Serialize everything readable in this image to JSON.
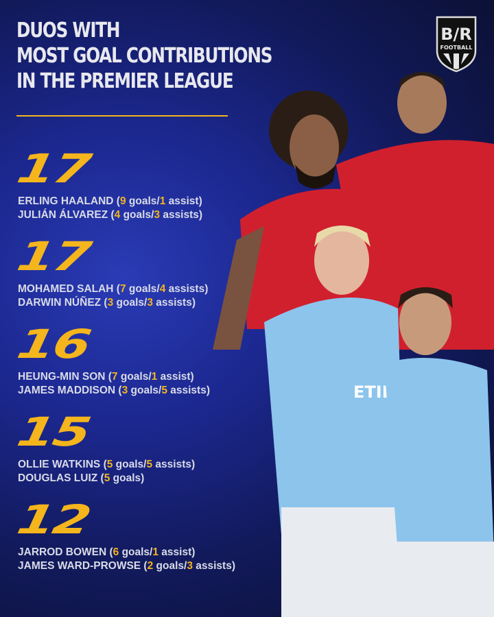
{
  "title": [
    "DUOS WITH",
    "MOST GOAL CONTRIBUTIONS",
    "IN THE PREMIER LEAGUE"
  ],
  "logo": {
    "text": "B/R",
    "subtext": "FOOTBALL"
  },
  "colors": {
    "accent": "#f5b51c",
    "background": "#1c2890",
    "liverpool_red": "#d0202e",
    "city_blue": "#8cc4ec"
  },
  "entries": [
    {
      "total": "17",
      "lines": [
        [
          {
            "t": "ERLING HAALAND ("
          },
          {
            "t": "9",
            "hl": true
          },
          {
            "t": " goals/"
          },
          {
            "t": "1",
            "hl": true
          },
          {
            "t": " assist)"
          }
        ],
        [
          {
            "t": "JULIÁN ÁLVAREZ ("
          },
          {
            "t": "4",
            "hl": true
          },
          {
            "t": " goals/"
          },
          {
            "t": "3",
            "hl": true
          },
          {
            "t": " assists)"
          }
        ]
      ]
    },
    {
      "total": "17",
      "lines": [
        [
          {
            "t": "MOHAMED SALAH ("
          },
          {
            "t": "7",
            "hl": true
          },
          {
            "t": " goals/"
          },
          {
            "t": "4",
            "hl": true
          },
          {
            "t": " assists)"
          }
        ],
        [
          {
            "t": "DARWIN NÚÑEZ ("
          },
          {
            "t": "3",
            "hl": true
          },
          {
            "t": " goals/"
          },
          {
            "t": "3",
            "hl": true
          },
          {
            "t": " assists)"
          }
        ]
      ]
    },
    {
      "total": "16",
      "lines": [
        [
          {
            "t": "HEUNG-MIN SON ("
          },
          {
            "t": "7",
            "hl": true
          },
          {
            "t": " goals/"
          },
          {
            "t": "1",
            "hl": true
          },
          {
            "t": " assist)"
          }
        ],
        [
          {
            "t": "JAMES MADDISON ("
          },
          {
            "t": "3",
            "hl": true
          },
          {
            "t": " goals/"
          },
          {
            "t": "5",
            "hl": true
          },
          {
            "t": " assists)"
          }
        ]
      ]
    },
    {
      "total": "15",
      "lines": [
        [
          {
            "t": "OLLIE WATKINS ("
          },
          {
            "t": "5",
            "hl": true
          },
          {
            "t": " goals/"
          },
          {
            "t": "5",
            "hl": true
          },
          {
            "t": " assists)"
          }
        ],
        [
          {
            "t": "DOUGLAS LUIZ ("
          },
          {
            "t": "5",
            "hl": true
          },
          {
            "t": " goals)"
          }
        ]
      ]
    },
    {
      "total": "12",
      "lines": [
        [
          {
            "t": "JARROD BOWEN ("
          },
          {
            "t": "6",
            "hl": true
          },
          {
            "t": " goals/"
          },
          {
            "t": "1",
            "hl": true
          },
          {
            "t": " assist)"
          }
        ],
        [
          {
            "t": "JAMES WARD-PROWSE ("
          },
          {
            "t": "2",
            "hl": true
          },
          {
            "t": " goals/"
          },
          {
            "t": "3",
            "hl": true
          },
          {
            "t": " assists)"
          }
        ]
      ]
    }
  ]
}
